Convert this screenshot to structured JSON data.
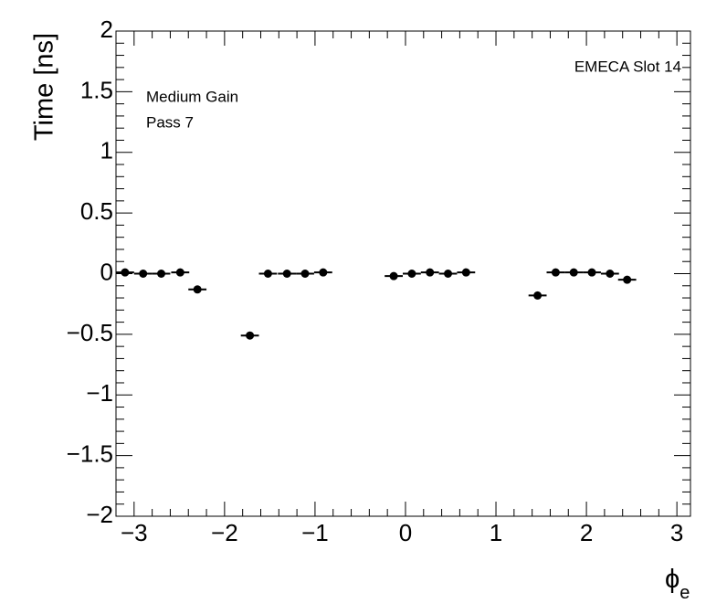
{
  "chart_data": {
    "type": "scatter",
    "y_label": "Time [ns]",
    "x_label": "ϕ",
    "x_label_subscript": "e",
    "annotations": [
      "EMECA Slot 14",
      "Medium Gain",
      "Pass 7"
    ],
    "xlim": [
      -3.2,
      3.15
    ],
    "ylim": [
      -2,
      2
    ],
    "xticks": [
      {
        "value": -3,
        "label": "−3"
      },
      {
        "value": -2,
        "label": "−2"
      },
      {
        "value": -1,
        "label": "−1"
      },
      0,
      1,
      2,
      3
    ],
    "yticks": [
      {
        "value": -2,
        "label": "−2"
      },
      {
        "value": -1.5,
        "label": "−1.5"
      },
      {
        "value": -1,
        "label": "−1"
      },
      {
        "value": -0.5,
        "label": "−0.5"
      },
      0,
      0.5,
      1,
      1.5,
      2
    ],
    "color": "#000000",
    "xerr": 0.1,
    "x": [
      -3.1,
      -2.9,
      -2.7,
      -2.49,
      -2.3,
      -1.72,
      -1.52,
      -1.31,
      -1.11,
      -0.91,
      -0.13,
      0.07,
      0.27,
      0.47,
      0.67,
      1.46,
      1.66,
      1.86,
      2.06,
      2.26,
      2.45
    ],
    "y": [
      0.01,
      0,
      0,
      0.01,
      -0.13,
      -0.51,
      0,
      0,
      0,
      0.01,
      -0.02,
      0,
      0.01,
      0,
      0.01,
      -0.18,
      0.01,
      0.01,
      0.01,
      0,
      -0.05
    ]
  }
}
